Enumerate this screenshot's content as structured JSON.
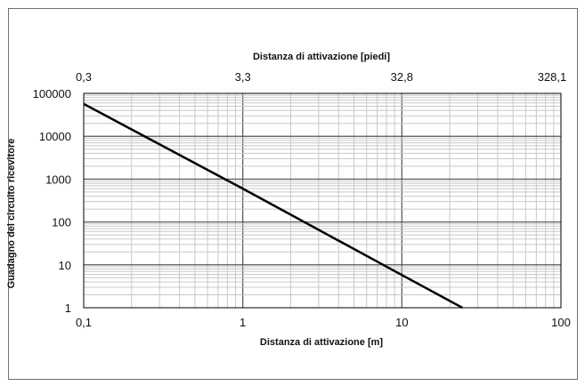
{
  "chart_data": {
    "type": "line",
    "title": "",
    "xlabel": "Distanza di attivazione [m]",
    "x2label": "Distanza di attivazione [piedi]",
    "ylabel": "Guadagno del circuito ricevitore",
    "x_scale": "log",
    "y_scale": "log",
    "xlim": [
      0.1,
      100
    ],
    "ylim": [
      1,
      100000
    ],
    "x_ticks": [
      "0,1",
      "1",
      "10",
      "100"
    ],
    "x2_ticks": [
      "0,3",
      "3,3",
      "32,8",
      "328,1"
    ],
    "y_ticks": [
      "1",
      "10",
      "100",
      "1000",
      "10000",
      "100000"
    ],
    "grid": true,
    "series": [
      {
        "x": [
          0.1,
          1,
          10,
          24
        ],
        "y": [
          57000,
          600,
          5.8,
          1
        ],
        "color": "#000000"
      }
    ]
  }
}
